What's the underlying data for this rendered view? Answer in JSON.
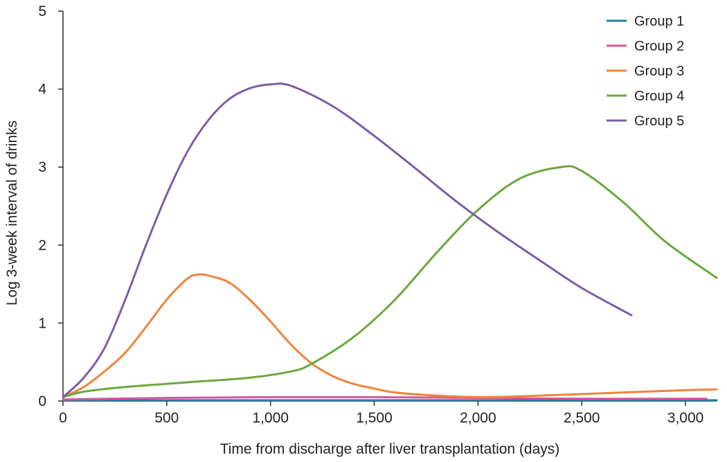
{
  "chart_data": {
    "type": "line",
    "title": "",
    "xlabel": "Time from discharge after liver transplantation (days)",
    "ylabel": "Log 3-week interval of drinks",
    "xlim": [
      0,
      3150
    ],
    "ylim": [
      0,
      5
    ],
    "x_ticks": [
      0,
      500,
      1000,
      1500,
      2000,
      2500,
      3000
    ],
    "x_tick_labels": [
      "0",
      "500",
      "1,000",
      "1,500",
      "2,000",
      "2,500",
      "3,000"
    ],
    "y_ticks": [
      0,
      1,
      2,
      3,
      4,
      5
    ],
    "y_tick_labels": [
      "0",
      "1",
      "2",
      "3",
      "4",
      "5"
    ],
    "grid": false,
    "legend_position": "top-right",
    "series": [
      {
        "name": "Group 1",
        "color": "#1f7fa0",
        "x": [
          0,
          500,
          1000,
          1500,
          2000,
          2500,
          3000,
          3150
        ],
        "y": [
          0.01,
          0.01,
          0.01,
          0.01,
          0.01,
          0.01,
          0.01,
          0.01
        ]
      },
      {
        "name": "Group 2",
        "color": "#d9559c",
        "x": [
          0,
          500,
          1000,
          1500,
          2000,
          2500,
          3000,
          3100
        ],
        "y": [
          0.02,
          0.04,
          0.05,
          0.05,
          0.04,
          0.03,
          0.03,
          0.03
        ]
      },
      {
        "name": "Group 3",
        "color": "#f0843b",
        "x": [
          0,
          100,
          200,
          300,
          400,
          500,
          600,
          650,
          700,
          800,
          900,
          1000,
          1100,
          1200,
          1300,
          1400,
          1500,
          1600,
          1800,
          2000,
          2200,
          2500,
          2800,
          3000,
          3150
        ],
        "y": [
          0.05,
          0.18,
          0.38,
          0.62,
          0.95,
          1.3,
          1.57,
          1.62,
          1.61,
          1.52,
          1.3,
          1.02,
          0.72,
          0.48,
          0.32,
          0.22,
          0.16,
          0.11,
          0.07,
          0.05,
          0.06,
          0.09,
          0.12,
          0.14,
          0.15
        ]
      },
      {
        "name": "Group 4",
        "color": "#6aa83d",
        "x": [
          0,
          100,
          300,
          600,
          900,
          1100,
          1200,
          1400,
          1600,
          1800,
          2000,
          2200,
          2400,
          2500,
          2700,
          2900,
          3150
        ],
        "y": [
          0.05,
          0.12,
          0.18,
          0.24,
          0.3,
          0.38,
          0.48,
          0.82,
          1.3,
          1.9,
          2.45,
          2.85,
          3.0,
          2.95,
          2.55,
          2.05,
          1.58
        ]
      },
      {
        "name": "Group 5",
        "color": "#7a5ea6",
        "x": [
          0,
          100,
          200,
          300,
          400,
          500,
          600,
          700,
          800,
          900,
          1000,
          1100,
          1300,
          1500,
          1700,
          1900,
          2100,
          2300,
          2500,
          2740
        ],
        "y": [
          0.05,
          0.3,
          0.68,
          1.3,
          2.0,
          2.65,
          3.2,
          3.6,
          3.87,
          4.01,
          4.06,
          4.04,
          3.78,
          3.4,
          2.98,
          2.55,
          2.16,
          1.8,
          1.45,
          1.1
        ]
      }
    ]
  }
}
